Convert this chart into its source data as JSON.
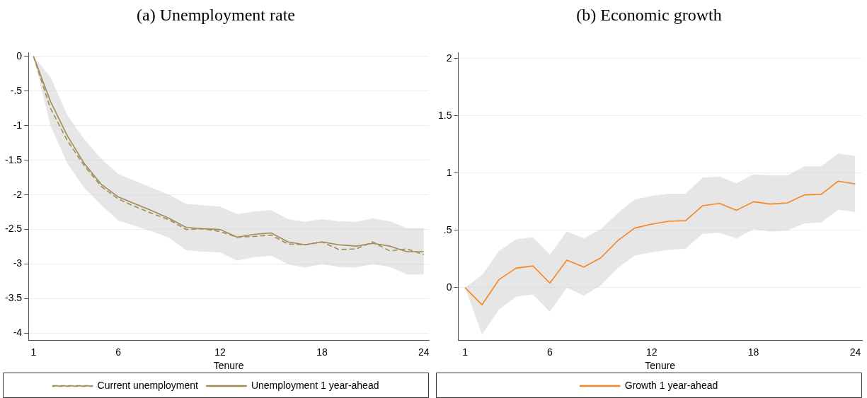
{
  "chart_data": [
    {
      "type": "line",
      "title": "(a) Unemployment rate",
      "xlabel": "Tenure",
      "x": [
        1,
        2,
        3,
        4,
        5,
        6,
        7,
        8,
        9,
        10,
        11,
        12,
        13,
        14,
        15,
        16,
        17,
        18,
        19,
        20,
        21,
        22,
        23,
        24
      ],
      "xlim": [
        0.7,
        24.3
      ],
      "xticks": [
        1,
        6,
        12,
        18,
        24
      ],
      "ylim": [
        -4.1,
        0.05
      ],
      "yticks": [
        {
          "value": -4,
          "label": "-4"
        },
        {
          "value": -3.5,
          "label": "-3.5"
        },
        {
          "value": -3,
          "label": "-3"
        },
        {
          "value": -2.5,
          "label": "-2.5"
        },
        {
          "value": -2,
          "label": "-2"
        },
        {
          "value": -1.5,
          "label": "-1.5"
        },
        {
          "value": -1,
          "label": "-1"
        },
        {
          "value": -0.5,
          "label": "-.5"
        },
        {
          "value": 0,
          "label": "0"
        }
      ],
      "grid": "y",
      "legend": "bottom",
      "marker": "none",
      "series": [
        {
          "name": "Current unemployment",
          "color": "#a08c55",
          "line_style": "dashed",
          "values": [
            0,
            -0.75,
            -1.22,
            -1.58,
            -1.88,
            -2.06,
            -2.17,
            -2.27,
            -2.36,
            -2.5,
            -2.49,
            -2.53,
            -2.61,
            -2.6,
            -2.58,
            -2.71,
            -2.72,
            -2.68,
            -2.79,
            -2.78,
            -2.68,
            -2.81,
            -2.78,
            -2.86
          ]
        },
        {
          "name": "Unemployment 1 year-ahead",
          "color": "#a08c55",
          "line_style": "solid",
          "values": [
            0,
            -0.65,
            -1.15,
            -1.55,
            -1.85,
            -2.03,
            -2.13,
            -2.23,
            -2.34,
            -2.47,
            -2.49,
            -2.5,
            -2.61,
            -2.57,
            -2.55,
            -2.68,
            -2.72,
            -2.68,
            -2.72,
            -2.74,
            -2.7,
            -2.74,
            -2.82,
            -2.82
          ],
          "upper": [
            0,
            -0.3,
            -0.85,
            -1.2,
            -1.48,
            -1.7,
            -1.8,
            -1.9,
            -2,
            -2.13,
            -2.15,
            -2.17,
            -2.28,
            -2.24,
            -2.22,
            -2.35,
            -2.39,
            -2.35,
            -2.38,
            -2.39,
            -2.34,
            -2.38,
            -2.48,
            -2.48
          ],
          "lower": [
            0,
            -1,
            -1.55,
            -1.9,
            -2.15,
            -2.37,
            -2.45,
            -2.53,
            -2.62,
            -2.8,
            -2.82,
            -2.83,
            -2.95,
            -2.9,
            -2.88,
            -3,
            -3.05,
            -3,
            -3.04,
            -3.05,
            -3,
            -3.04,
            -3.15,
            -3.15
          ]
        }
      ]
    },
    {
      "type": "line",
      "title": "(b) Economic growth",
      "xlabel": "Tenure",
      "x": [
        1,
        2,
        3,
        4,
        5,
        6,
        7,
        8,
        9,
        10,
        11,
        12,
        13,
        14,
        15,
        16,
        17,
        18,
        19,
        20,
        21,
        22,
        23,
        24
      ],
      "xlim": [
        0.6,
        24.4
      ],
      "xticks": [
        1,
        6,
        12,
        18,
        24
      ],
      "ylim": [
        -0.46,
        2.05
      ],
      "yticks": [
        0,
        {
          "value": 0.5,
          "label": ".5"
        },
        1,
        1.5,
        2
      ],
      "grid": "y",
      "legend": "bottom",
      "marker": "none",
      "series": [
        {
          "name": "Growth 1 year-ahead",
          "color": "#f7861e",
          "line_style": "solid",
          "values": [
            0,
            -0.15,
            0.07,
            0.17,
            0.19,
            0.04,
            0.24,
            0.18,
            0.26,
            0.41,
            0.52,
            0.555,
            0.58,
            0.585,
            0.715,
            0.735,
            0.675,
            0.75,
            0.73,
            0.74,
            0.81,
            0.815,
            0.93,
            0.905
          ],
          "upper": [
            0,
            0.11,
            0.32,
            0.42,
            0.44,
            0.29,
            0.49,
            0.43,
            0.51,
            0.65,
            0.77,
            0.8,
            0.82,
            0.82,
            0.96,
            0.97,
            0.91,
            0.99,
            0.98,
            0.98,
            1.06,
            1.06,
            1.17,
            1.15
          ],
          "lower": [
            0,
            -0.41,
            -0.19,
            -0.08,
            -0.06,
            -0.21,
            0,
            -0.07,
            0.02,
            0.17,
            0.28,
            0.31,
            0.33,
            0.34,
            0.47,
            0.48,
            0.43,
            0.51,
            0.49,
            0.5,
            0.56,
            0.57,
            0.68,
            0.66
          ]
        }
      ]
    }
  ]
}
